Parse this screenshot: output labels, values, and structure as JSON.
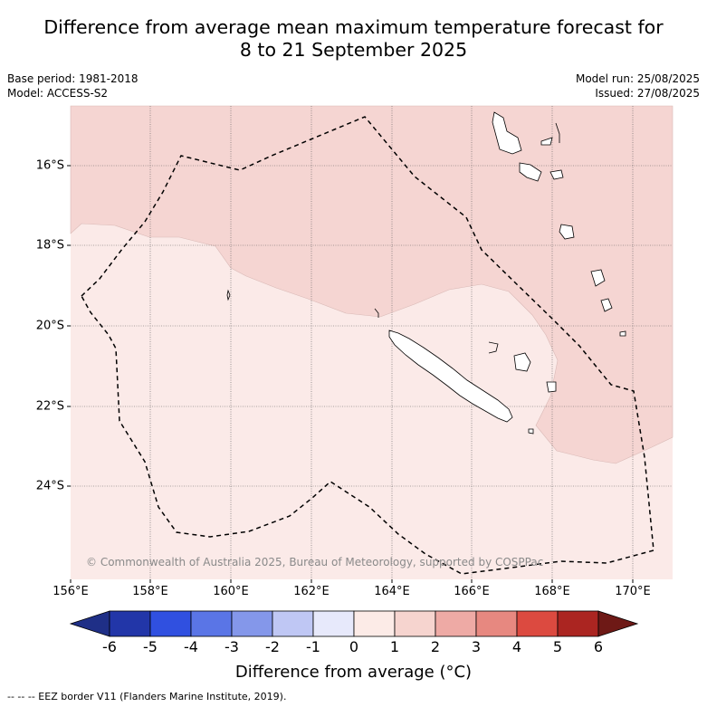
{
  "title": {
    "line1": "Difference from average mean maximum temperature forecast for",
    "line2": "8 to 21 September 2025"
  },
  "meta": {
    "base_period": "Base period: 1981-2018",
    "model": "Model: ACCESS-S2",
    "model_run": "Model run: 25/08/2025",
    "issued": "Issued: 27/08/2025"
  },
  "map": {
    "lat_labels": [
      "16°S",
      "18°S",
      "20°S",
      "22°S",
      "24°S"
    ],
    "lon_labels": [
      "156°E",
      "158°E",
      "160°E",
      "162°E",
      "164°E",
      "166°E",
      "168°E",
      "170°E"
    ],
    "credit": "© Commonwealth of Australia 2025, Bureau of Meteorology, supported by COSPPac",
    "fill_colors": {
      "zero_to_one": "#fbeae8",
      "one_to_two": "#f5d5d2"
    }
  },
  "colorbar": {
    "ticks": [
      "-6",
      "-5",
      "-4",
      "-3",
      "-2",
      "-1",
      "0",
      "1",
      "2",
      "3",
      "4",
      "5",
      "6"
    ],
    "colors": [
      "#1f2f87",
      "#2236a8",
      "#3050e0",
      "#5a75e6",
      "#8497ea",
      "#bfc7f4",
      "#e7e9fb",
      "#fcebe7",
      "#f6d4cf",
      "#eeaaa5",
      "#e78880",
      "#dc4a40",
      "#ab2521",
      "#6e1916"
    ],
    "title": "Difference from average (°C)"
  },
  "footer": "-- -- -- EEZ border V11 (Flanders Marine Institute, 2019)."
}
